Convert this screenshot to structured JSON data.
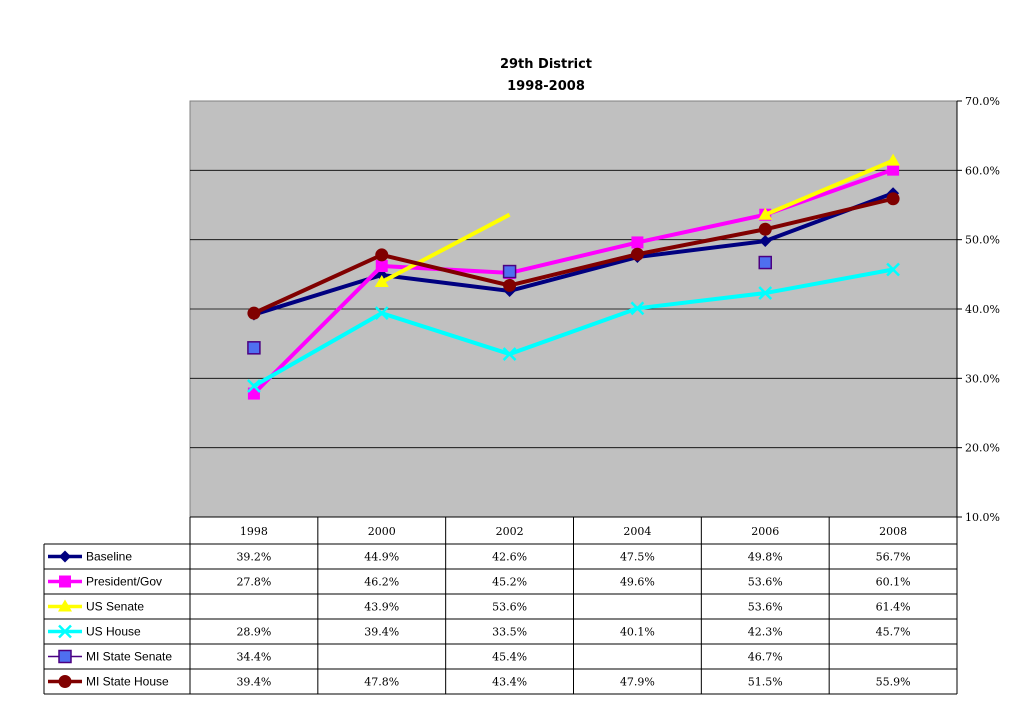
{
  "chart_data": {
    "type": "line",
    "title": "29th District",
    "subtitle": "1998-2008",
    "categories": [
      "1998",
      "2000",
      "2002",
      "2004",
      "2006",
      "2008"
    ],
    "ylim": [
      10.0,
      70.0
    ],
    "yticks": [
      "10.0%",
      "20.0%",
      "30.0%",
      "40.0%",
      "50.0%",
      "60.0%",
      "70.0%"
    ],
    "y_axis_side": "right",
    "grid": true,
    "plot_background": "#c0c0c0",
    "legend": "data-table-below",
    "series": [
      {
        "name": "Baseline",
        "color": "#000080",
        "marker": "diamond",
        "values": [
          39.2,
          44.9,
          42.6,
          47.5,
          49.8,
          56.7
        ],
        "labels": [
          "39.2%",
          "44.9%",
          "42.6%",
          "47.5%",
          "49.8%",
          "56.7%"
        ]
      },
      {
        "name": "President/Gov",
        "color": "#ff00ff",
        "marker": "square",
        "values": [
          27.8,
          46.2,
          45.2,
          49.6,
          53.6,
          60.1
        ],
        "labels": [
          "27.8%",
          "46.2%",
          "45.2%",
          "49.6%",
          "53.6%",
          "60.1%"
        ]
      },
      {
        "name": "US Senate",
        "color": "#ffff00",
        "marker": "triangle",
        "values": [
          null,
          43.9,
          53.6,
          null,
          53.6,
          61.4
        ],
        "labels": [
          "",
          "43.9%",
          "53.6%",
          "",
          "53.6%",
          "61.4%"
        ]
      },
      {
        "name": "US House",
        "color": "#00ffff",
        "marker": "x",
        "values": [
          28.9,
          39.4,
          33.5,
          40.1,
          42.3,
          45.7
        ],
        "labels": [
          "28.9%",
          "39.4%",
          "33.5%",
          "40.1%",
          "42.3%",
          "45.7%"
        ]
      },
      {
        "name": "MI State Senate",
        "color": "#4f6ff0",
        "marker": "square-outline",
        "line": false,
        "values": [
          34.4,
          null,
          45.4,
          null,
          46.7,
          null
        ],
        "labels": [
          "34.4%",
          "",
          "45.4%",
          "",
          "46.7%",
          ""
        ]
      },
      {
        "name": "MI State House",
        "color": "#800000",
        "marker": "circle",
        "values": [
          39.4,
          47.8,
          43.4,
          47.9,
          51.5,
          55.9
        ],
        "labels": [
          "39.4%",
          "47.8%",
          "43.4%",
          "47.9%",
          "51.5%",
          "55.9%"
        ]
      }
    ]
  }
}
